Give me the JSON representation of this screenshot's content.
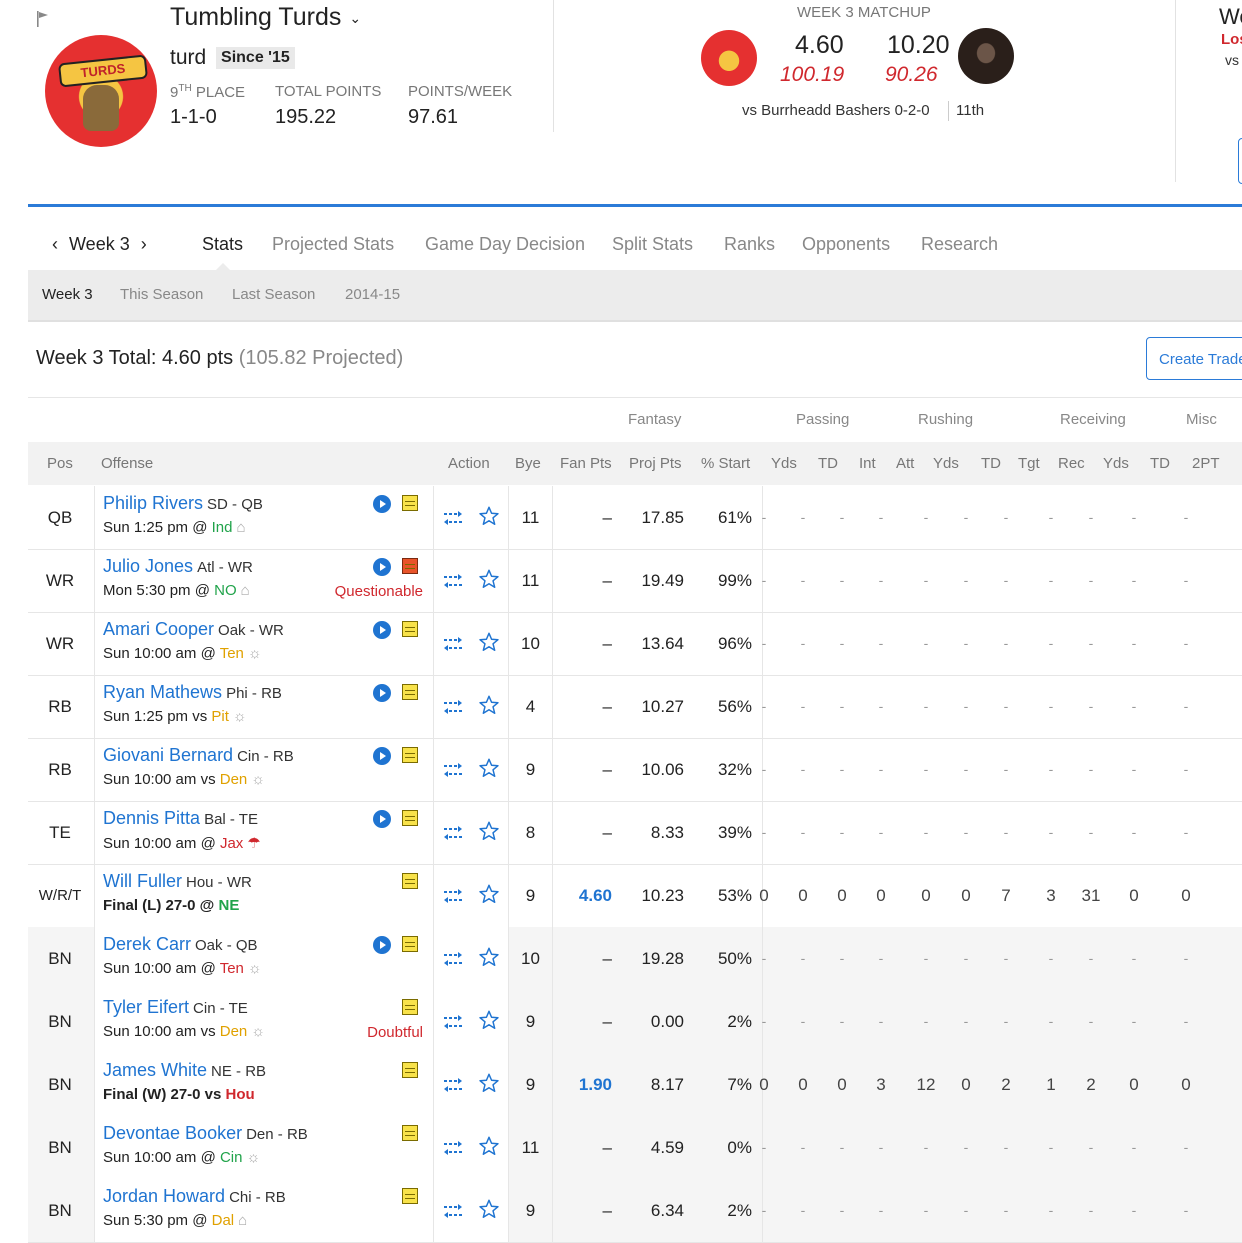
{
  "team": {
    "name": "Tumbling Turds",
    "owner": "turd",
    "since": "Since '15",
    "place_num": "9",
    "place_suffix": "TH",
    "place_label": "PLACE",
    "record": "1-1-0",
    "total_points_label": "TOTAL POINTS",
    "total_points": "195.22",
    "ppw_label": "POINTS/WEEK",
    "ppw": "97.61",
    "logo_text": "TURDS"
  },
  "matchup": {
    "title": "WEEK 3 MATCHUP",
    "my_score": "4.60",
    "my_proj": "100.19",
    "opp_score": "10.20",
    "opp_proj": "90.26",
    "vs_text": "vs Burrheadd Bashers 0-2-0",
    "rank": "11th"
  },
  "right_panel": {
    "w": "We",
    "lo": "Los",
    "vs": "vs"
  },
  "week_nav": {
    "label": "Week 3",
    "prev": "‹",
    "next": "›"
  },
  "tabs": [
    "Stats",
    "Projected Stats",
    "Game Day Decision",
    "Split Stats",
    "Ranks",
    "Opponents",
    "Research"
  ],
  "subtabs": [
    "Week 3",
    "This Season",
    "Last Season",
    "2014-15"
  ],
  "total": {
    "main": "Week 3 Total: 4.60 pts",
    "proj": "(105.82 Projected)"
  },
  "create_trade": "Create Trade",
  "groups": [
    "Fantasy",
    "Passing",
    "Rushing",
    "Receiving",
    "Misc"
  ],
  "headers": {
    "pos": "Pos",
    "offense": "Offense",
    "action": "Action",
    "bye": "Bye",
    "fan": "Fan Pts",
    "proj": "Proj Pts",
    "start": "% Start",
    "stats": [
      "Yds",
      "TD",
      "Int",
      "Att",
      "Yds",
      "TD",
      "Tgt",
      "Rec",
      "Yds",
      "TD",
      "2PT"
    ]
  },
  "players": [
    {
      "pos": "QB",
      "name": "Philip Rivers",
      "team": "SD - QB",
      "game": "Sun 1:25 pm @ ",
      "opp": "Ind",
      "opp_color": "green",
      "wx": "dome",
      "status": "",
      "video": true,
      "note": "yellow",
      "bye": "11",
      "fan": "–",
      "proj": "17.85",
      "start": "61%",
      "stats": [
        "-",
        "-",
        "-",
        "-",
        "-",
        "-",
        "-",
        "-",
        "-",
        "-",
        "-"
      ],
      "bn": false,
      "final": false
    },
    {
      "pos": "WR",
      "name": "Julio Jones",
      "team": "Atl - WR",
      "game": "Mon 5:30 pm @ ",
      "opp": "NO",
      "opp_color": "green",
      "wx": "dome",
      "status": "Questionable",
      "video": true,
      "note": "red",
      "bye": "11",
      "fan": "–",
      "proj": "19.49",
      "start": "99%",
      "stats": [
        "-",
        "-",
        "-",
        "-",
        "-",
        "-",
        "-",
        "-",
        "-",
        "-",
        "-"
      ],
      "bn": false,
      "final": false
    },
    {
      "pos": "WR",
      "name": "Amari Cooper",
      "team": "Oak - WR",
      "game": "Sun 10:00 am @ ",
      "opp": "Ten",
      "opp_color": "gold",
      "wx": "sun",
      "status": "",
      "video": true,
      "note": "yellow",
      "bye": "10",
      "fan": "–",
      "proj": "13.64",
      "start": "96%",
      "stats": [
        "-",
        "-",
        "-",
        "-",
        "-",
        "-",
        "-",
        "-",
        "-",
        "-",
        "-"
      ],
      "bn": false,
      "final": false
    },
    {
      "pos": "RB",
      "name": "Ryan Mathews",
      "team": "Phi - RB",
      "game": "Sun 1:25 pm vs ",
      "opp": "Pit",
      "opp_color": "gold",
      "wx": "sun",
      "status": "",
      "video": true,
      "note": "yellow",
      "bye": "4",
      "fan": "–",
      "proj": "10.27",
      "start": "56%",
      "stats": [
        "-",
        "-",
        "-",
        "-",
        "-",
        "-",
        "-",
        "-",
        "-",
        "-",
        "-"
      ],
      "bn": false,
      "final": false
    },
    {
      "pos": "RB",
      "name": "Giovani Bernard",
      "team": "Cin - RB",
      "game": "Sun 10:00 am vs ",
      "opp": "Den",
      "opp_color": "gold",
      "wx": "sun",
      "status": "",
      "video": true,
      "note": "yellow",
      "bye": "9",
      "fan": "–",
      "proj": "10.06",
      "start": "32%",
      "stats": [
        "-",
        "-",
        "-",
        "-",
        "-",
        "-",
        "-",
        "-",
        "-",
        "-",
        "-"
      ],
      "bn": false,
      "final": false
    },
    {
      "pos": "TE",
      "name": "Dennis Pitta",
      "team": "Bal - TE",
      "game": "Sun 10:00 am @ ",
      "opp": "Jax",
      "opp_color": "red",
      "wx": "rain",
      "status": "",
      "video": true,
      "note": "yellow",
      "bye": "8",
      "fan": "–",
      "proj": "8.33",
      "start": "39%",
      "stats": [
        "-",
        "-",
        "-",
        "-",
        "-",
        "-",
        "-",
        "-",
        "-",
        "-",
        "-"
      ],
      "bn": false,
      "final": false
    },
    {
      "pos": "W/R/T",
      "name": "Will Fuller",
      "team": "Hou - WR",
      "game": "Final (L) 27-0 @ ",
      "opp": "NE",
      "opp_color": "green",
      "wx": "",
      "status": "",
      "video": false,
      "note": "yellow",
      "bye": "9",
      "fan": "4.60",
      "proj": "10.23",
      "start": "53%",
      "stats": [
        "0",
        "0",
        "0",
        "0",
        "0",
        "0",
        "7",
        "3",
        "31",
        "0",
        "0"
      ],
      "bn": false,
      "final": true
    },
    {
      "pos": "BN",
      "name": "Derek Carr",
      "team": "Oak - QB",
      "game": "Sun 10:00 am @ ",
      "opp": "Ten",
      "opp_color": "red",
      "wx": "sun",
      "status": "",
      "video": true,
      "note": "yellow",
      "bye": "10",
      "fan": "–",
      "proj": "19.28",
      "start": "50%",
      "stats": [
        "-",
        "-",
        "-",
        "-",
        "-",
        "-",
        "-",
        "-",
        "-",
        "-",
        "-"
      ],
      "bn": true,
      "final": false
    },
    {
      "pos": "BN",
      "name": "Tyler Eifert",
      "team": "Cin - TE",
      "game": "Sun 10:00 am vs ",
      "opp": "Den",
      "opp_color": "gold",
      "wx": "sun",
      "status": "Doubtful",
      "video": false,
      "note": "yellow",
      "bye": "9",
      "fan": "–",
      "proj": "0.00",
      "start": "2%",
      "stats": [
        "-",
        "-",
        "-",
        "-",
        "-",
        "-",
        "-",
        "-",
        "-",
        "-",
        "-"
      ],
      "bn": true,
      "final": false
    },
    {
      "pos": "BN",
      "name": "James White",
      "team": "NE - RB",
      "game": "Final (W) 27-0 vs ",
      "opp": "Hou",
      "opp_color": "red",
      "wx": "",
      "status": "",
      "video": false,
      "note": "yellow",
      "bye": "9",
      "fan": "1.90",
      "proj": "8.17",
      "start": "7%",
      "stats": [
        "0",
        "0",
        "0",
        "3",
        "12",
        "0",
        "2",
        "1",
        "2",
        "0",
        "0"
      ],
      "bn": true,
      "final": true
    },
    {
      "pos": "BN",
      "name": "Devontae Booker",
      "team": "Den - RB",
      "game": "Sun 10:00 am @ ",
      "opp": "Cin",
      "opp_color": "green",
      "wx": "sun",
      "status": "",
      "video": false,
      "note": "yellow",
      "bye": "11",
      "fan": "–",
      "proj": "4.59",
      "start": "0%",
      "stats": [
        "-",
        "-",
        "-",
        "-",
        "-",
        "-",
        "-",
        "-",
        "-",
        "-",
        "-"
      ],
      "bn": true,
      "final": false
    },
    {
      "pos": "BN",
      "name": "Jordan Howard",
      "team": "Chi - RB",
      "game": "Sun 5:30 pm @ ",
      "opp": "Dal",
      "opp_color": "gold",
      "wx": "dome",
      "status": "",
      "video": false,
      "note": "yellow",
      "bye": "9",
      "fan": "–",
      "proj": "6.34",
      "start": "2%",
      "stats": [
        "-",
        "-",
        "-",
        "-",
        "-",
        "-",
        "-",
        "-",
        "-",
        "-",
        "-"
      ],
      "bn": true,
      "final": false
    }
  ]
}
